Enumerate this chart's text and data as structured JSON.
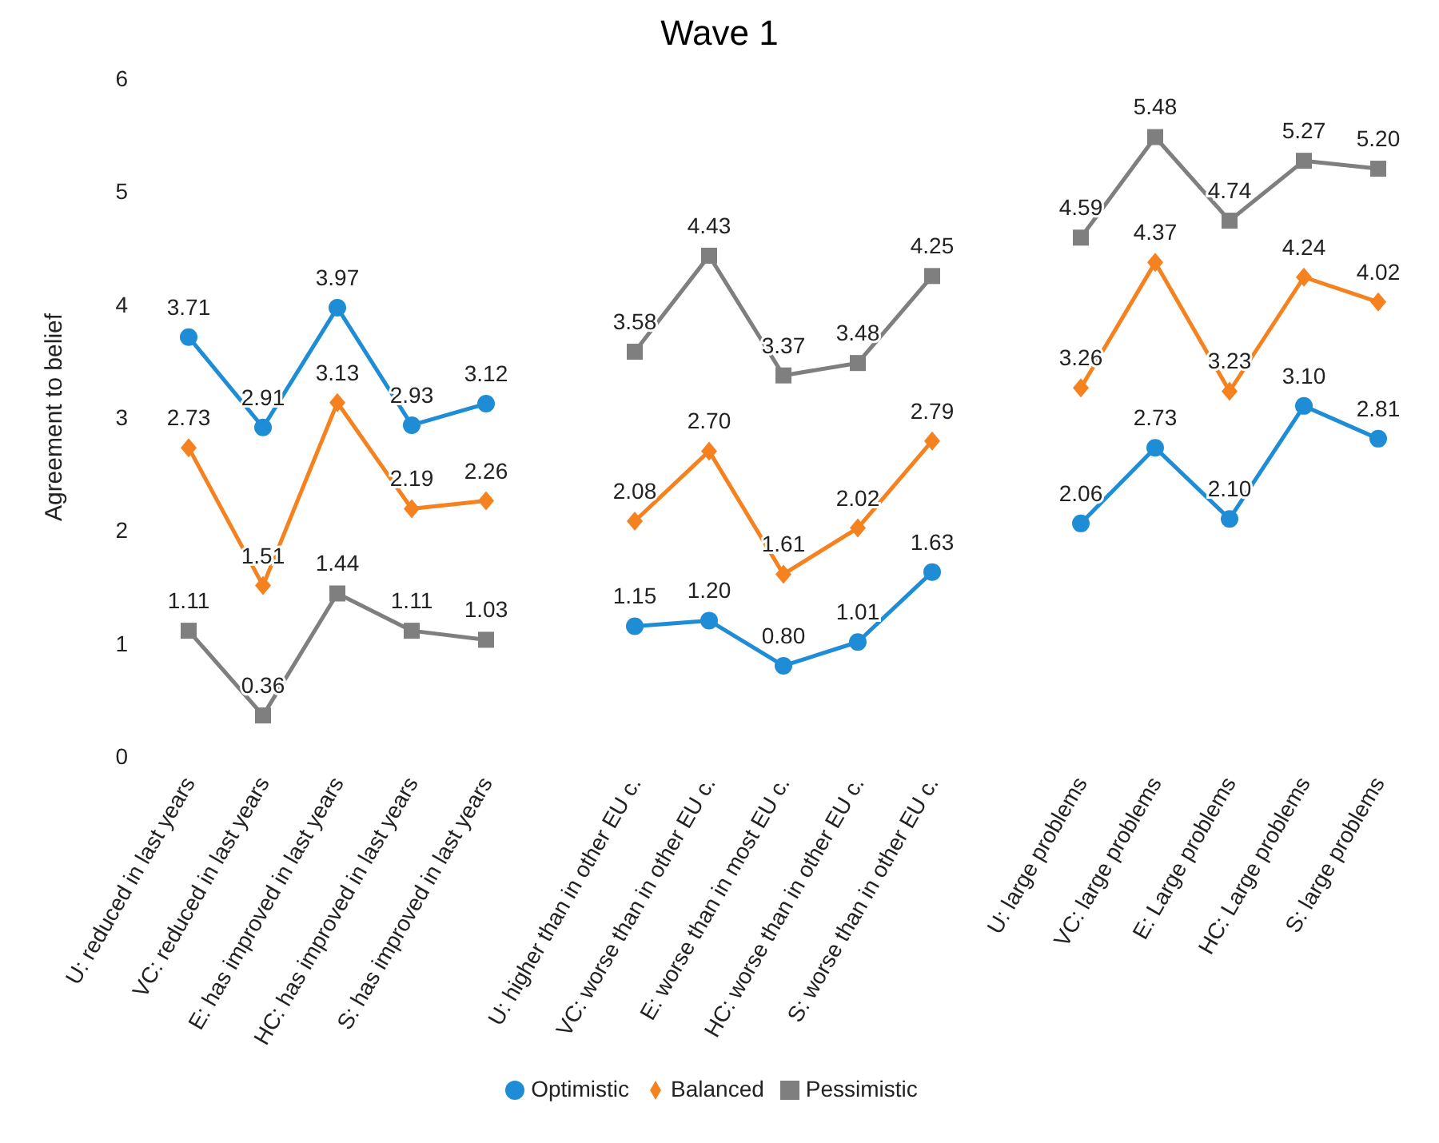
{
  "chart_data": {
    "type": "line",
    "title": "Wave 1",
    "ylabel": "Agreement to belief",
    "categories": [
      "U: reduced in last years",
      "VC: reduced in last years",
      "E: has improved in last years",
      "HC: has improved in last years",
      "S: has improved in last years",
      null,
      "U: higher than in other EU c.",
      "VC: worse than in other EU c.",
      "E: worse than in most EU c.",
      "HC: worse than in other EU c.",
      "S: worse than in other EU c.",
      null,
      "U: large problems",
      "VC: large problems",
      "E: Large problems",
      "HC: Large problems",
      "S: large problems"
    ],
    "series": [
      {
        "name": "Optimistic",
        "color": "#1f8dd6",
        "marker": "circle",
        "values": [
          3.71,
          2.91,
          3.97,
          2.93,
          3.12,
          null,
          1.15,
          1.2,
          0.8,
          1.01,
          1.63,
          null,
          2.06,
          2.73,
          2.1,
          3.1,
          2.81
        ],
        "value_labels": [
          "3.71",
          "2.91",
          "3.97",
          "2.93",
          "3.12",
          null,
          "1.15",
          "1.20",
          "0.80",
          "1.01",
          "1.63",
          null,
          "2.06",
          "2.73",
          "2.10",
          "3.10",
          "2.81"
        ]
      },
      {
        "name": "Balanced",
        "color": "#f5821f",
        "marker": "diamond",
        "values": [
          2.73,
          1.51,
          3.13,
          2.19,
          2.26,
          null,
          2.08,
          2.7,
          1.61,
          2.02,
          2.79,
          null,
          3.26,
          4.37,
          3.23,
          4.24,
          4.02
        ],
        "value_labels": [
          "2.73",
          "1.51",
          "3.13",
          "2.19",
          "2.26",
          null,
          "2.08",
          "2.70",
          "1.61",
          "2.02",
          "2.79",
          null,
          "3.26",
          "4.37",
          "3.23",
          "4.24",
          "4.02"
        ]
      },
      {
        "name": "Pessimistic",
        "color": "#7f7f7f",
        "marker": "square",
        "values": [
          1.11,
          0.36,
          1.44,
          1.11,
          1.03,
          null,
          3.58,
          4.43,
          3.37,
          3.48,
          4.25,
          null,
          4.59,
          5.48,
          4.74,
          5.27,
          5.2
        ],
        "value_labels": [
          "1.11",
          "0.36",
          "1.44",
          "1.11",
          "1.03",
          null,
          "3.58",
          "4.43",
          "3.37",
          "3.48",
          "4.25",
          null,
          "4.59",
          "5.48",
          "4.74",
          "5.27",
          "5.20"
        ]
      }
    ],
    "ylim": [
      0,
      6
    ],
    "yticks": [
      0,
      1,
      2,
      3,
      4,
      5,
      6
    ],
    "grid": false,
    "legend": "bottom",
    "line_style": "solid"
  }
}
